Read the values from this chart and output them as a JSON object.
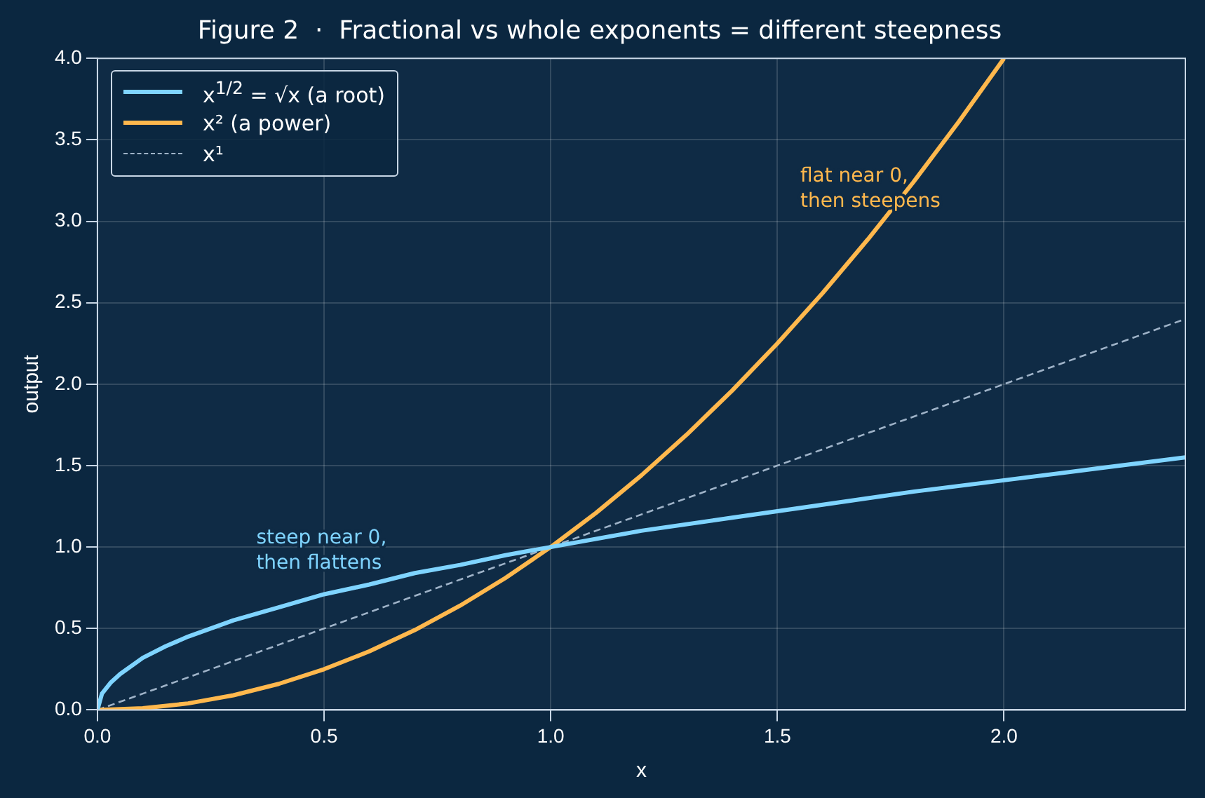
{
  "chart_data": {
    "type": "line",
    "title": "Figure 2  ·  Fractional vs whole exponents = different steepness",
    "xlabel": "x",
    "ylabel": "output",
    "xlim": [
      0,
      2.4
    ],
    "xticks": [
      {
        "value": 0,
        "label": "0.0"
      },
      0.5,
      {
        "value": 1,
        "label": "1.0"
      },
      1.5,
      {
        "value": 2,
        "label": "2.0"
      }
    ],
    "ylim": [
      0,
      4
    ],
    "yticks": [
      {
        "value": 0,
        "label": "0.0"
      },
      0.5,
      {
        "value": 1,
        "label": "1.0"
      },
      1.5,
      {
        "value": 2,
        "label": "2.0"
      },
      2.5,
      {
        "value": 3,
        "label": "3.0"
      },
      3.5,
      {
        "value": 4,
        "label": "4.0"
      }
    ],
    "grid": true,
    "legend": "top left",
    "marker": "none",
    "series": [
      {
        "name": "x$^{1/2}$ = √x (a root)",
        "color": "#7fd4ff",
        "x": [
          0,
          0.01,
          0.03,
          0.05,
          0.1,
          0.15,
          0.2,
          0.3,
          0.4,
          0.5,
          0.6,
          0.7,
          0.8,
          0.9,
          1.0,
          1.2,
          1.4,
          1.6,
          1.8,
          2.0,
          2.2,
          2.4
        ],
        "values": [
          0,
          0.1,
          0.17,
          0.22,
          0.32,
          0.39,
          0.45,
          0.55,
          0.63,
          0.71,
          0.77,
          0.84,
          0.89,
          0.95,
          1,
          1.1,
          1.18,
          1.26,
          1.34,
          1.41,
          1.48,
          1.55
        ]
      },
      {
        "name": "x² (a power)",
        "color": "#ffb84d",
        "x": [
          0,
          0.1,
          0.2,
          0.3,
          0.4,
          0.5,
          0.6,
          0.7,
          0.8,
          0.9,
          1.0,
          1.1,
          1.2,
          1.3,
          1.4,
          1.5,
          1.6,
          1.7,
          1.8,
          1.9,
          2.0
        ],
        "values": [
          0,
          0.01,
          0.04,
          0.09,
          0.16,
          0.25,
          0.36,
          0.49,
          0.64,
          0.81,
          1,
          1.21,
          1.44,
          1.69,
          1.96,
          2.25,
          2.56,
          2.89,
          3.24,
          3.61,
          4
        ]
      },
      {
        "name": "x¹",
        "color": "#9fb3c8",
        "line_style": "dashed",
        "x": [
          0,
          2.4
        ],
        "values": [
          0,
          2.4
        ]
      }
    ],
    "annotations": [
      "steep near 0,\nthen flattens",
      "flat near 0,\nthen steepens"
    ]
  }
}
